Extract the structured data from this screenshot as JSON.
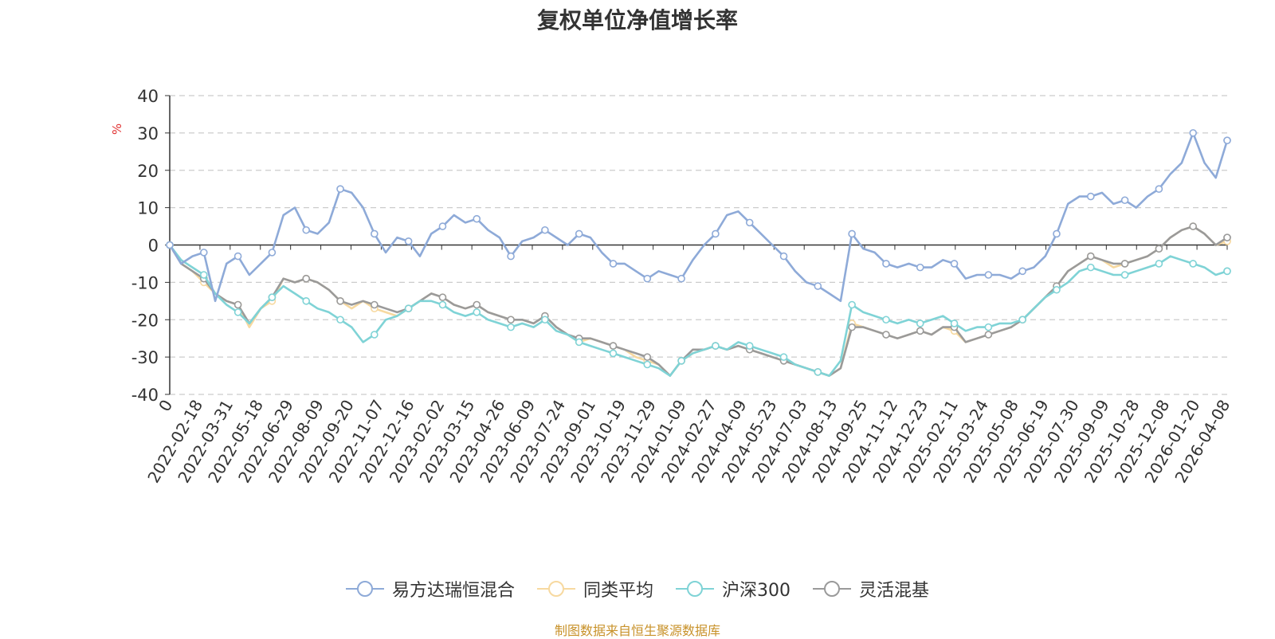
{
  "chart_data": {
    "type": "line",
    "title": "复权单位净值增长率",
    "ylabel": "%",
    "ylim": [
      -40,
      40
    ],
    "yticks": [
      40,
      30,
      20,
      10,
      0,
      -10,
      -20,
      -30,
      -40
    ],
    "x_tick_labels": [
      "0",
      "2022-02-18",
      "2022-03-31",
      "2022-05-18",
      "2022-06-29",
      "2022-08-09",
      "2022-09-20",
      "2022-11-07",
      "2022-12-16",
      "2023-02-02",
      "2023-03-15",
      "2023-04-26",
      "2023-06-09",
      "2023-07-24",
      "2023-09-01",
      "2023-10-19",
      "2023-11-29",
      "2024-01-09",
      "2024-02-27",
      "2024-04-09",
      "2024-05-23",
      "2024-07-03",
      "2024-08-13",
      "2024-09-25",
      "2024-11-12",
      "2024-12-23",
      "2025-02-11",
      "2025-03-24",
      "2025-05-08",
      "2025-06-19",
      "2025-07-30",
      "2025-09-09",
      "2025-10-28",
      "2025-12-08",
      "2026-01-20",
      "2026-04-08"
    ],
    "grid": true,
    "legend_position": "bottom-center",
    "series": [
      {
        "name": "易方达瑞恒混合",
        "color": "#8eaad8",
        "values": [
          0,
          -5,
          -3,
          -2,
          -15,
          -5,
          -3,
          -8,
          -5,
          -2,
          8,
          10,
          4,
          3,
          6,
          15,
          14,
          10,
          3,
          -2,
          2,
          1,
          -3,
          3,
          5,
          8,
          6,
          7,
          4,
          2,
          -3,
          1,
          2,
          4,
          2,
          0,
          3,
          2,
          -2,
          -5,
          -5,
          -7,
          -9,
          -7,
          -8,
          -9,
          -4,
          0,
          3,
          8,
          9,
          6,
          3,
          0,
          -3,
          -7,
          -10,
          -11,
          -13,
          -15,
          3,
          -1,
          -2,
          -5,
          -6,
          -5,
          -6,
          -6,
          -4,
          -5,
          -9,
          -8,
          -8,
          -8,
          -9,
          -7,
          -6,
          -3,
          3,
          11,
          13,
          13,
          14,
          11,
          12,
          10,
          13,
          15,
          19,
          22,
          30,
          22,
          18,
          28
        ]
      },
      {
        "name": "同类平均",
        "color": "#f7d9a0",
        "values": [
          0,
          -5,
          -7,
          -10,
          -13,
          -15,
          -16,
          -22,
          -17,
          -15,
          -9,
          -10,
          -9,
          -10,
          -12,
          -15,
          -17,
          -15,
          -17,
          -18,
          -19,
          -17,
          -15,
          -13,
          -14,
          -16,
          -17,
          -16,
          -18,
          -19,
          -20,
          -20,
          -21,
          -19,
          -22,
          -24,
          -26,
          -25,
          -26,
          -27,
          -28,
          -30,
          -31,
          -32,
          -35,
          -31,
          -29,
          -28,
          -27,
          -28,
          -27,
          -28,
          -29,
          -30,
          -31,
          -32,
          -33,
          -34,
          -35,
          -33,
          -21,
          -22,
          -23,
          -24,
          -25,
          -24,
          -23,
          -24,
          -22,
          -23,
          -26,
          -25,
          -24,
          -23,
          -22,
          -20,
          -17,
          -14,
          -11,
          -7,
          -5,
          -3,
          -4,
          -6,
          -5,
          -4,
          -3,
          -1,
          2,
          4,
          5,
          3,
          0,
          1
        ]
      },
      {
        "name": "沪深300",
        "color": "#7fd3d6",
        "values": [
          0,
          -4,
          -6,
          -8,
          -13,
          -16,
          -18,
          -21,
          -17,
          -14,
          -11,
          -13,
          -15,
          -17,
          -18,
          -20,
          -22,
          -26,
          -24,
          -20,
          -19,
          -17,
          -15,
          -15,
          -16,
          -18,
          -19,
          -18,
          -20,
          -21,
          -22,
          -21,
          -22,
          -20,
          -23,
          -24,
          -26,
          -27,
          -28,
          -29,
          -30,
          -31,
          -32,
          -33,
          -35,
          -31,
          -29,
          -28,
          -27,
          -28,
          -26,
          -27,
          -28,
          -29,
          -30,
          -32,
          -33,
          -34,
          -35,
          -31,
          -16,
          -18,
          -19,
          -20,
          -21,
          -20,
          -21,
          -20,
          -19,
          -21,
          -23,
          -22,
          -22,
          -21,
          -21,
          -20,
          -17,
          -14,
          -12,
          -10,
          -7,
          -6,
          -7,
          -8,
          -8,
          -7,
          -6,
          -5,
          -3,
          -4,
          -5,
          -6,
          -8,
          -7
        ]
      },
      {
        "name": "灵活混基",
        "color": "#9a9a9a",
        "values": [
          0,
          -5,
          -7,
          -9,
          -13,
          -15,
          -16,
          -21,
          -17,
          -14,
          -9,
          -10,
          -9,
          -10,
          -12,
          -15,
          -16,
          -15,
          -16,
          -17,
          -18,
          -17,
          -15,
          -13,
          -14,
          -16,
          -17,
          -16,
          -18,
          -19,
          -20,
          -20,
          -21,
          -19,
          -22,
          -24,
          -25,
          -25,
          -26,
          -27,
          -28,
          -29,
          -30,
          -32,
          -35,
          -31,
          -28,
          -28,
          -27,
          -28,
          -27,
          -28,
          -29,
          -30,
          -31,
          -32,
          -33,
          -34,
          -35,
          -33,
          -22,
          -22,
          -23,
          -24,
          -25,
          -24,
          -23,
          -24,
          -22,
          -22,
          -26,
          -25,
          -24,
          -23,
          -22,
          -20,
          -17,
          -14,
          -11,
          -7,
          -5,
          -3,
          -4,
          -5,
          -5,
          -4,
          -3,
          -1,
          2,
          4,
          5,
          3,
          0,
          2
        ]
      }
    ]
  },
  "footer": "制图数据来自恒生聚源数据库"
}
